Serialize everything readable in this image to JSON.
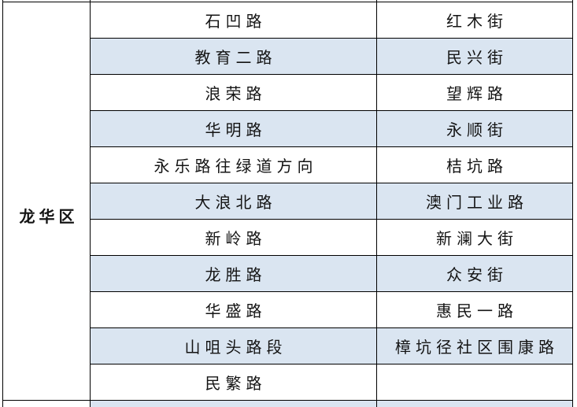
{
  "table": {
    "district": "龙华区",
    "rows": [
      {
        "road1": "石凹路",
        "road2": "红木街"
      },
      {
        "road1": "教育二路",
        "road2": "民兴街"
      },
      {
        "road1": "浪荣路",
        "road2": "望辉路"
      },
      {
        "road1": "华明路",
        "road2": "永顺街"
      },
      {
        "road1": "永乐路往绿道方向",
        "road2": "桔坑路"
      },
      {
        "road1": "大浪北路",
        "road2": "澳门工业路"
      },
      {
        "road1": "新岭路",
        "road2": "新澜大街"
      },
      {
        "road1": "龙胜路",
        "road2": "众安街"
      },
      {
        "road1": "华盛路",
        "road2": "惠民一路"
      },
      {
        "road1": "山咀头路段",
        "road2": "樟坑径社区围康路"
      },
      {
        "road1": "民繁路",
        "road2": ""
      }
    ],
    "colors": {
      "row_shade": "#DAE5F1",
      "border": "#000000",
      "text": "#141414"
    }
  }
}
